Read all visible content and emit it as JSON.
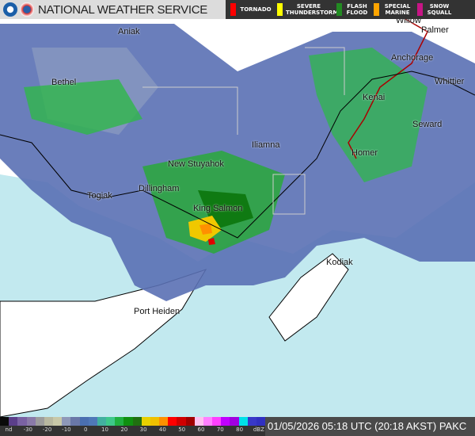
{
  "header": {
    "title": "NATIONAL WEATHER SERVICE",
    "logos": [
      "noaa-logo",
      "nws-logo"
    ]
  },
  "warnings": [
    {
      "label": "TORNADO",
      "color": "#ff0000"
    },
    {
      "label": "SEVERE THUNDERSTORM",
      "color": "#ffff00"
    },
    {
      "label": "FLASH FLOOD",
      "color": "#228b22"
    },
    {
      "label": "SPECIAL MARINE",
      "color": "#ffa500"
    },
    {
      "label": "SNOW SQUALL",
      "color": "#c71585"
    }
  ],
  "legend": {
    "ticks": [
      "nd",
      "-30",
      "-20",
      "-10",
      "0",
      "10",
      "20",
      "30",
      "40",
      "50",
      "60",
      "70",
      "80",
      "dBZ"
    ],
    "colors": [
      "#0a0a0a",
      "#5b3f8a",
      "#7a62a3",
      "#8a7aa8",
      "#9c9c9c",
      "#b8b8a0",
      "#c8c8a8",
      "#8e98b8",
      "#6a78a8",
      "#4a6fb0",
      "#4f78b8",
      "#42b0a0",
      "#3ec88a",
      "#20b040",
      "#109010",
      "#207010",
      "#e8d000",
      "#f0c000",
      "#ff9000",
      "#ff0000",
      "#d00000",
      "#a00000",
      "#ffc0f0",
      "#ff80ff",
      "#ff40ff",
      "#c000ff",
      "#a000e0",
      "#00e0e8",
      "#3838c8",
      "#3030c0"
    ]
  },
  "status": {
    "timestamp": "01/05/2026 05:18 UTC (20:18 AKST)",
    "site": "PAKC"
  },
  "cities": [
    {
      "name": "Aniak"
    },
    {
      "name": "Bethel"
    },
    {
      "name": "Willow"
    },
    {
      "name": "Palmer"
    },
    {
      "name": "Anchorage"
    },
    {
      "name": "Whittier"
    },
    {
      "name": "Kenai"
    },
    {
      "name": "Seward"
    },
    {
      "name": "Iliamna"
    },
    {
      "name": "Homer"
    },
    {
      "name": "New Stuyahok"
    },
    {
      "name": "Dillingham"
    },
    {
      "name": "Togiak"
    },
    {
      "name": "King Salmon"
    },
    {
      "name": "Kodiak"
    },
    {
      "name": "Port Heiden"
    }
  ]
}
